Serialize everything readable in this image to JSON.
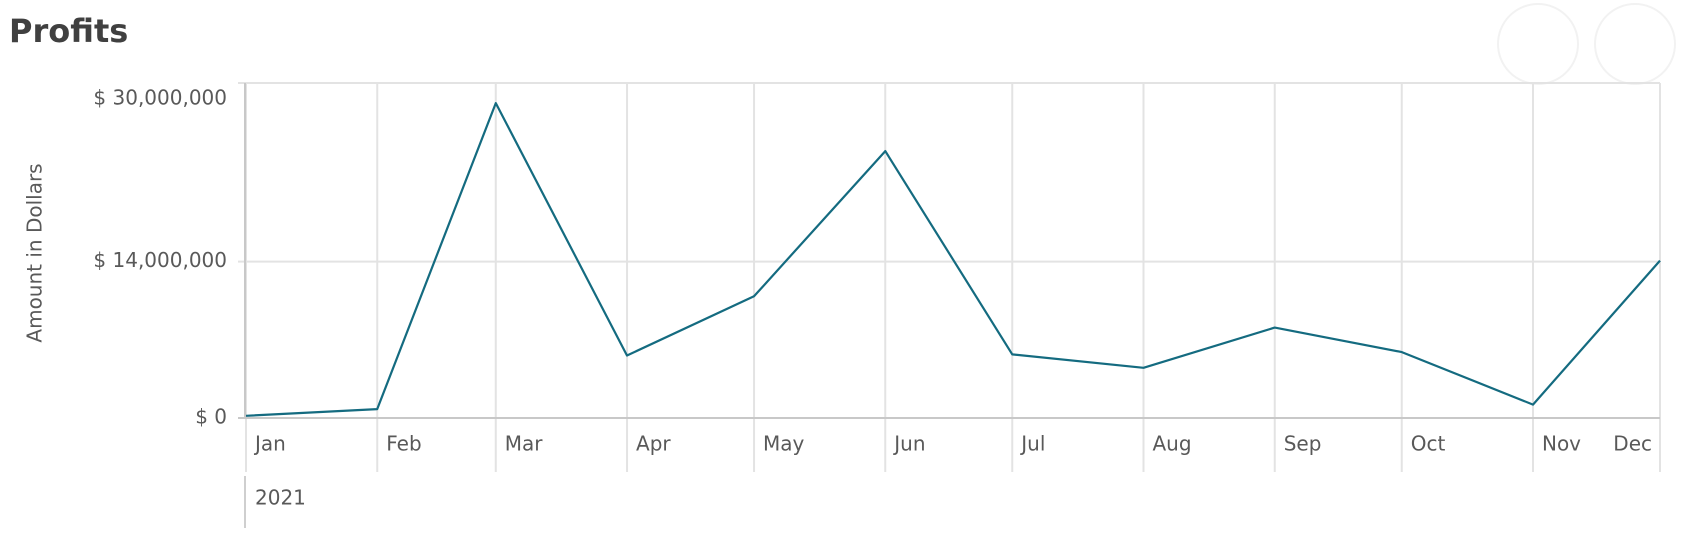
{
  "chart_data": {
    "type": "line",
    "title": "Profits",
    "y_label": "Amount in Dollars",
    "year": "2021",
    "categories": [
      "Jan",
      "Feb",
      "Mar",
      "Apr",
      "May",
      "Jun",
      "Jul",
      "Aug",
      "Sep",
      "Oct",
      "Nov",
      "Dec"
    ],
    "series": [
      {
        "name": "Profits",
        "color": "#146b80",
        "values": [
          200000,
          800000,
          28200000,
          5600000,
          10900000,
          23900000,
          5700000,
          4500000,
          8100000,
          5900000,
          1200000,
          14100000
        ]
      }
    ],
    "ylim": [
      0,
      30000000
    ],
    "yticks": [
      {
        "value": 0,
        "label": "$ 0"
      },
      {
        "value": 14000000,
        "label": "$ 14,000,000"
      },
      {
        "value": 30000000,
        "label": "$ 30,000,000"
      }
    ],
    "grid": true
  }
}
